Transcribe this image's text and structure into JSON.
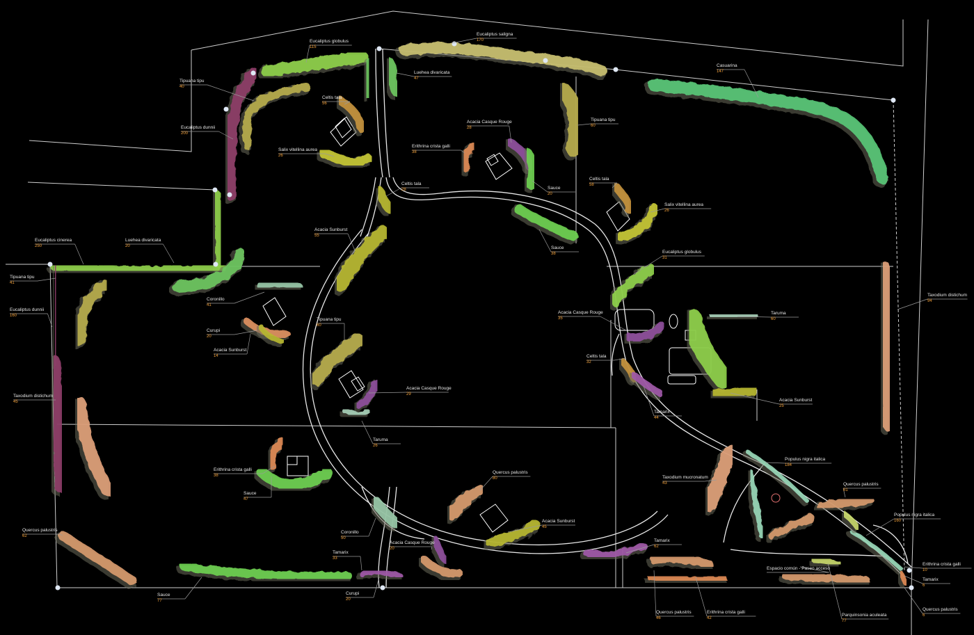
{
  "map": {
    "colors": {
      "background": "#000000",
      "boundary": "#d8d8d8",
      "path": "#e8e8e8",
      "count_text": "#f2a03a",
      "name_text": "#e6e6e6",
      "eucalyptus_globulus": "#8ed04a",
      "eucalyptus_saligna": "#c9c070",
      "eucalyptus_dunnii": "#8e3c68",
      "tipuana_tipu": "#b9ad4c",
      "casuarina": "#58c878",
      "celtis_tala": "#c5923e",
      "salix_vitellina_aurea": "#c5c834",
      "erithrina_crista_galli": "#e08a55",
      "acacia_casque_rouge": "#8e4f9c",
      "sauce": "#6cd050",
      "acacia_sunburst": "#b8b832",
      "coronillo": "#98c8a8",
      "curupi": "#e09060",
      "taxodium": "#e0a07a",
      "taruma": "#a8d0b8",
      "quercus_palustris": "#d89a6c",
      "populus_nigra_italica": "#98d8b8",
      "tamarix": "#a058a8",
      "parquinsonia_aculeata": "#c8d86a",
      "luehea_divaricata": "#6cc860"
    },
    "labels": [
      {
        "name": "Eucaliptus globulus",
        "count": "115"
      },
      {
        "name": "Eucaliptus saligna",
        "count": "170"
      },
      {
        "name": "Casuarina",
        "count": "147"
      },
      {
        "name": "Tipuana tipu",
        "count": "40"
      },
      {
        "name": "Luehea divaricata",
        "count": "47"
      },
      {
        "name": "Celtis tala",
        "count": "56"
      },
      {
        "name": "Eucaliptus dunnii",
        "count": "200"
      },
      {
        "name": "Salix vitellina aurea",
        "count": "26"
      },
      {
        "name": "Acacia Casque Rouge",
        "count": "28"
      },
      {
        "name": "Erithrina crista galli",
        "count": "38"
      },
      {
        "name": "Tipuana tipu",
        "count": "60"
      },
      {
        "name": "Sauce",
        "count": "20"
      },
      {
        "name": "Celtis tala",
        "count": "28"
      },
      {
        "name": "Celtis tala",
        "count": "58"
      },
      {
        "name": "Salix vitellina aurea",
        "count": "26"
      },
      {
        "name": "Acacia Sunburst",
        "count": "55"
      },
      {
        "name": "Sauce",
        "count": "38"
      },
      {
        "name": "Eucaliptus cinerea",
        "count": "250"
      },
      {
        "name": "Luehea divaricata",
        "count": "20"
      },
      {
        "name": "Eucaliptus globulus",
        "count": "31"
      },
      {
        "name": "Tipuana tipu",
        "count": "41"
      },
      {
        "name": "Coronillo",
        "count": "41"
      },
      {
        "name": "Eucaliptus dunnii",
        "count": "160"
      },
      {
        "name": "Curupi",
        "count": "20"
      },
      {
        "name": "Tipuana tipu",
        "count": "60"
      },
      {
        "name": "Acacia Casque Rouge",
        "count": "35"
      },
      {
        "name": "Taruma",
        "count": "60"
      },
      {
        "name": "Taxodium distichum",
        "count": "94"
      },
      {
        "name": "Acacia Sunburst",
        "count": "14"
      },
      {
        "name": "Celtis tala",
        "count": "32"
      },
      {
        "name": "Acacia Casque Rouge",
        "count": "29"
      },
      {
        "name": "Taxodium distichum",
        "count": "45"
      },
      {
        "name": "Acacia Sunburst",
        "count": "25"
      },
      {
        "name": "Tamarix",
        "count": "44"
      },
      {
        "name": "Taruma",
        "count": "26"
      },
      {
        "name": "Populus nigra italica",
        "count": "184"
      },
      {
        "name": "Erithrina crista galli",
        "count": "38"
      },
      {
        "name": "Taxodium mucronatum",
        "count": "43"
      },
      {
        "name": "Sauce",
        "count": "47"
      },
      {
        "name": "Quercus palustris",
        "count": "80"
      },
      {
        "name": "Quercus palustris",
        "count": "81"
      },
      {
        "name": "Acacia Sunburst",
        "count": "45"
      },
      {
        "name": "Populus nigra italica",
        "count": "160"
      },
      {
        "name": "Coronillo",
        "count": "50"
      },
      {
        "name": "Quercus palustris",
        "count": "62"
      },
      {
        "name": "Acacia Casque Rouge",
        "count": "20"
      },
      {
        "name": "Tamarix",
        "count": "62"
      },
      {
        "name": "Tamarix",
        "count": "33"
      },
      {
        "name": "Erithrina crista galli",
        "count": "10"
      },
      {
        "name": "Espacio común - Paseo acceso",
        "count": ""
      },
      {
        "name": "Tamarix",
        "count": "6"
      },
      {
        "name": "Sauce",
        "count": "77"
      },
      {
        "name": "Curupi",
        "count": "20"
      },
      {
        "name": "Quercus palustris",
        "count": "46"
      },
      {
        "name": "Erithrina crista galli",
        "count": "42"
      },
      {
        "name": "Parquinsonia aculeata",
        "count": "77"
      },
      {
        "name": "Quercus palustris",
        "count": "6"
      }
    ]
  }
}
